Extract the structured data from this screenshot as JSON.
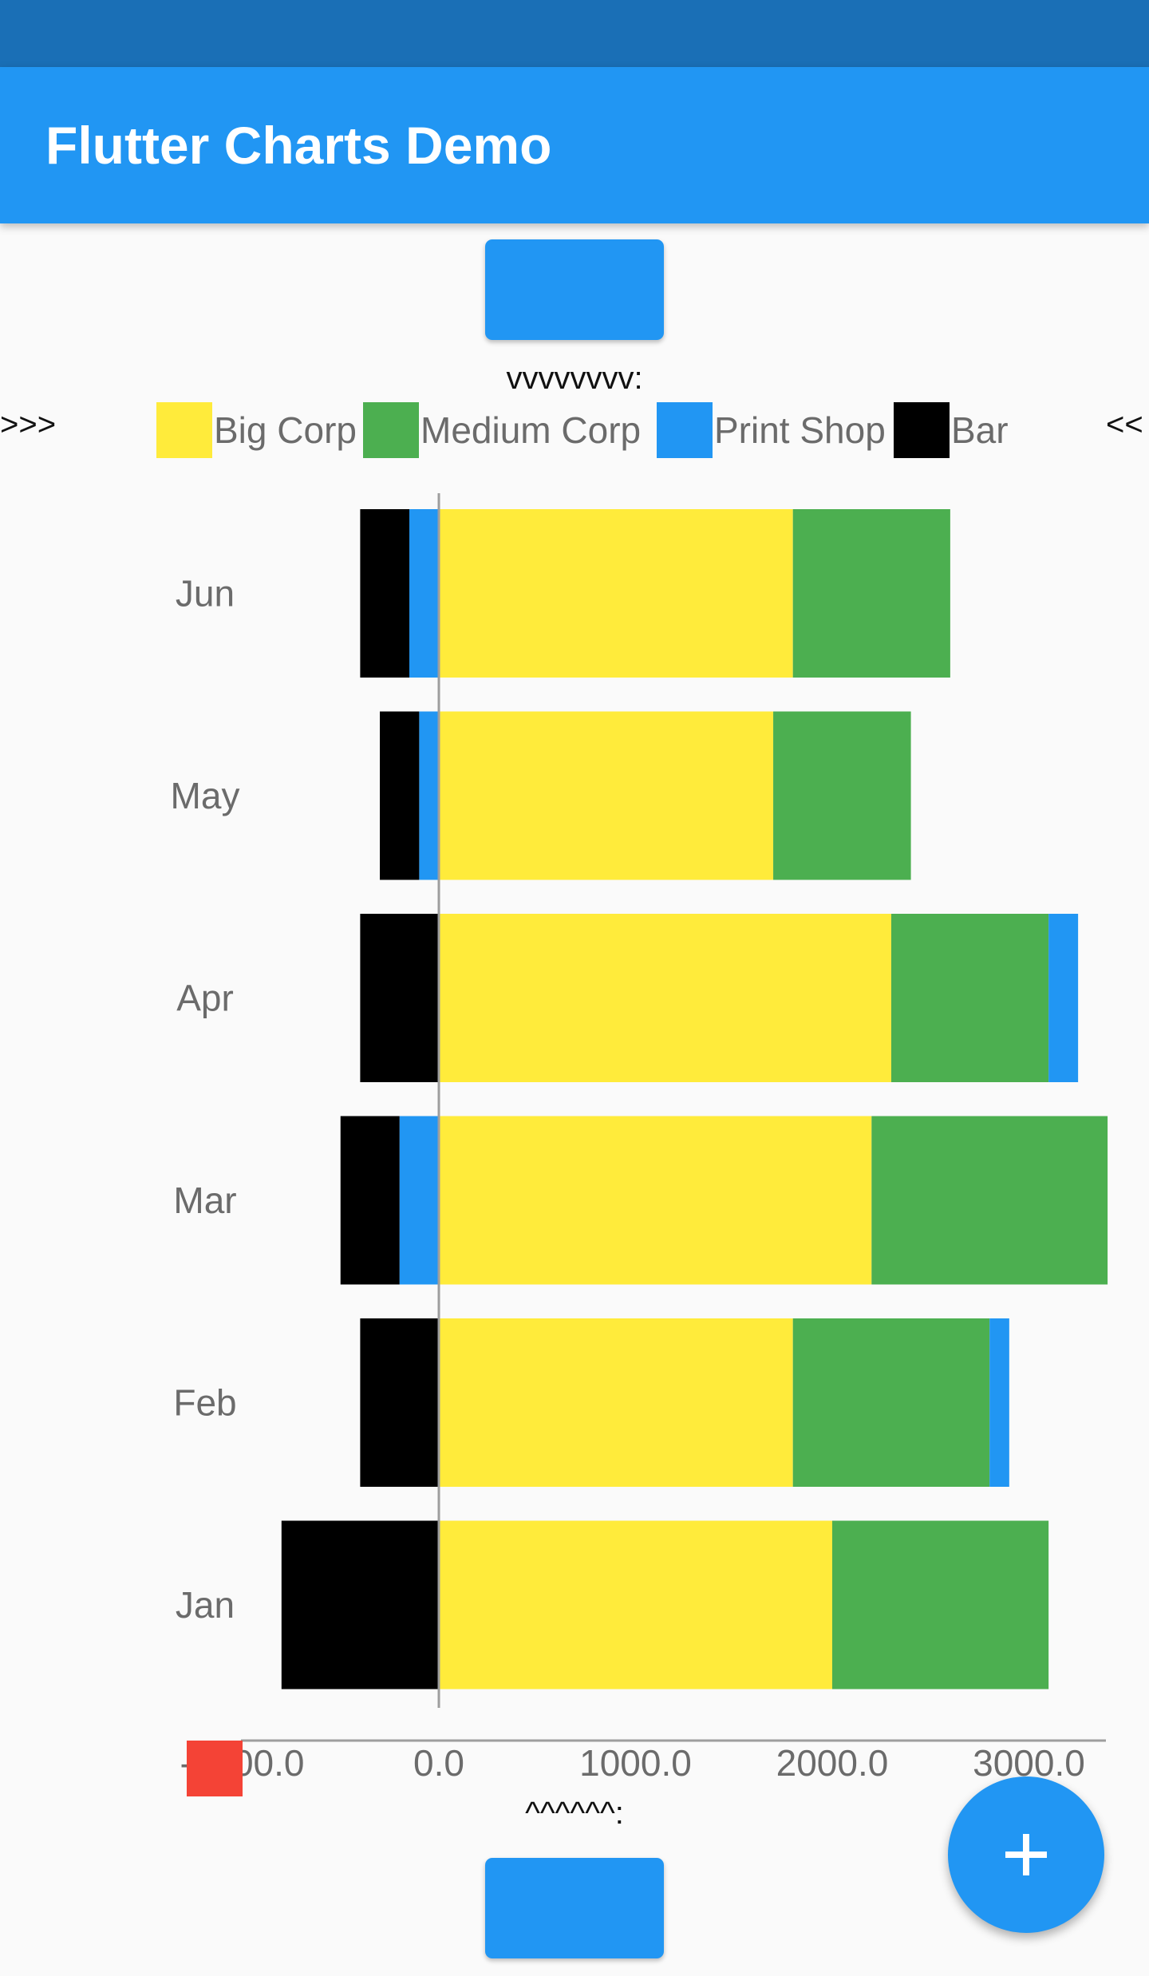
{
  "app": {
    "title": "Flutter Charts Demo"
  },
  "legend": {
    "header": "vvvvvvvv:",
    "left_arrow": ">>>",
    "right_arrow": "<<",
    "items": [
      {
        "label": "Big Corp",
        "color": "#ffeb3b"
      },
      {
        "label": "Medium Corp",
        "color": "#4caf50"
      },
      {
        "label": "Print Shop",
        "color": "#2196f3"
      },
      {
        "label": "Bar",
        "color": "#000000"
      }
    ]
  },
  "axis_footer": "^^^^^^:",
  "icons": {
    "fab": "plus-icon"
  },
  "chart_data": {
    "type": "bar",
    "orientation": "horizontal",
    "stacked": true,
    "categories": [
      "Jun",
      "May",
      "Apr",
      "Mar",
      "Feb",
      "Jan"
    ],
    "x_ticks": [
      "-1000.0",
      "0.0",
      "1000.0",
      "2000.0",
      "3000.0"
    ],
    "xlim": [
      -1000,
      3400
    ],
    "series": [
      {
        "name": "Big Corp",
        "color": "#ffeb3b",
        "values": [
          1800,
          1700,
          2300,
          2200,
          1800,
          2000
        ]
      },
      {
        "name": "Medium Corp",
        "color": "#4caf50",
        "values": [
          800,
          700,
          800,
          1200,
          1000,
          1100
        ]
      },
      {
        "name": "Print Shop",
        "color": "#2196f3",
        "values": [
          -150,
          -100,
          150,
          -200,
          100,
          0
        ]
      },
      {
        "name": "Bar",
        "color": "#000000",
        "values": [
          -250,
          -200,
          -400,
          -300,
          -400,
          -800
        ]
      }
    ]
  }
}
